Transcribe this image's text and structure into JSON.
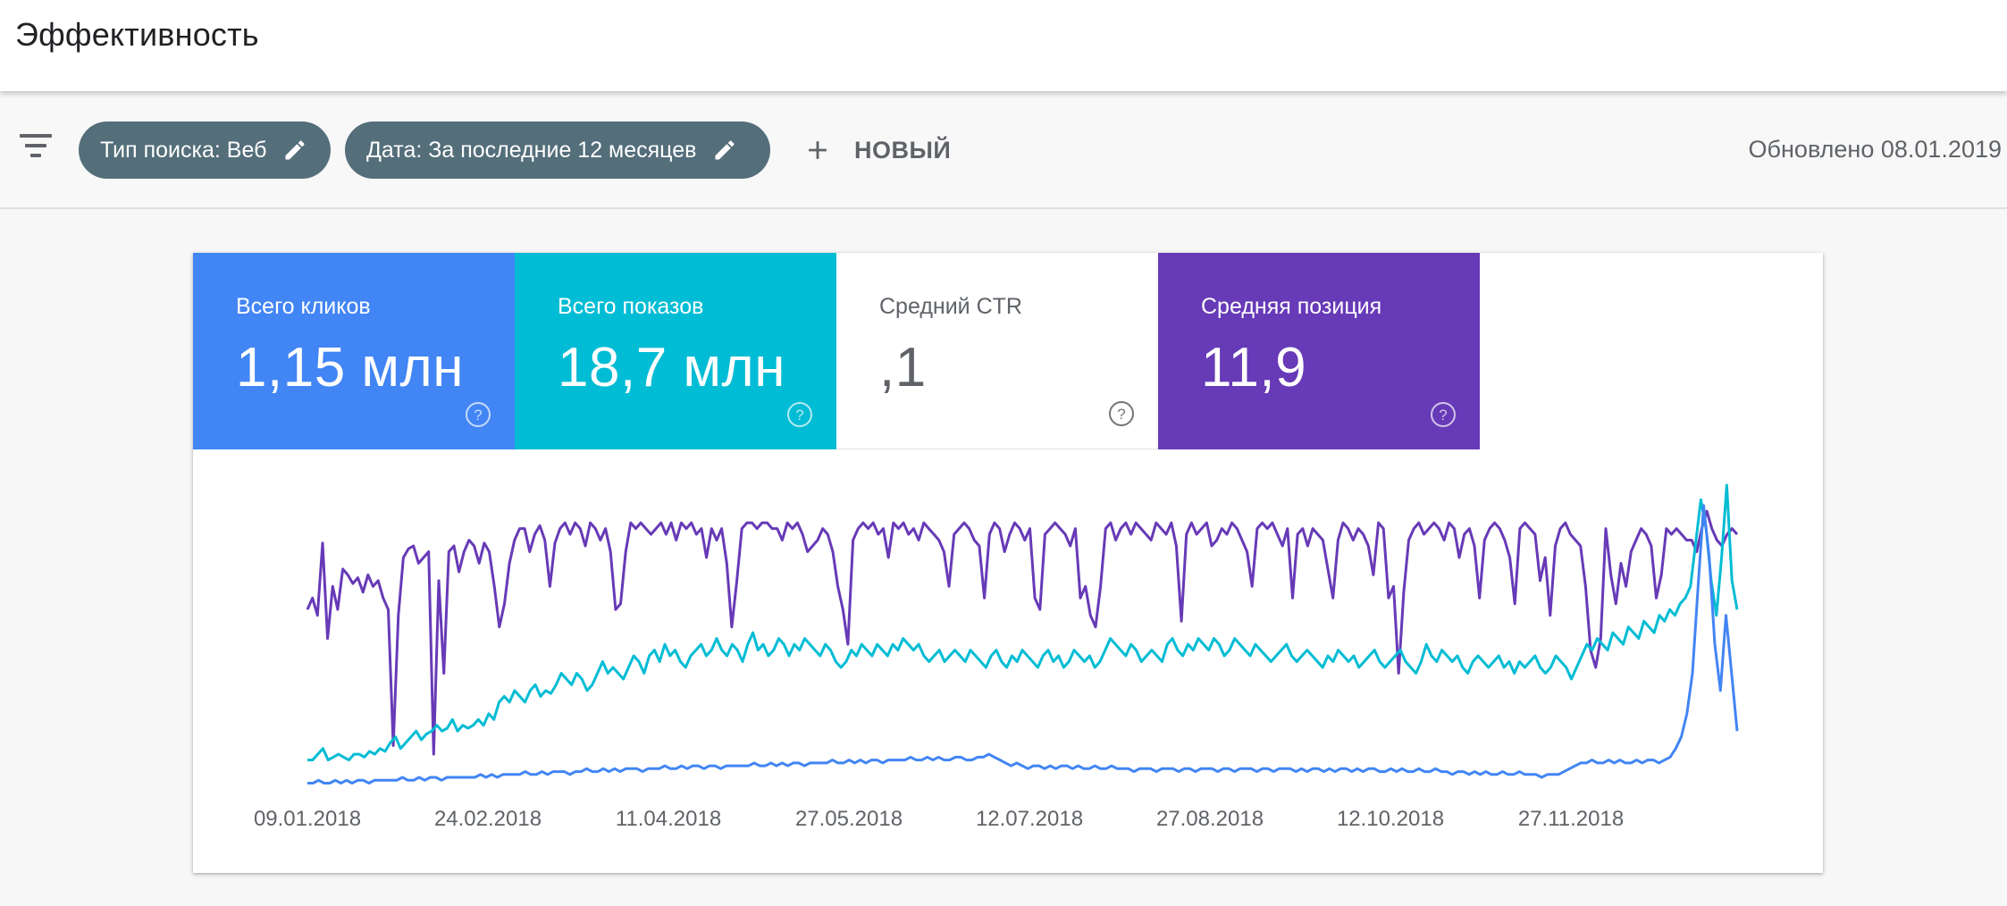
{
  "page": {
    "title": "Эффективность"
  },
  "filters": {
    "filter_icon": "filter-list-icon",
    "chips": [
      {
        "label": "Тип поиска: Веб",
        "icon": "pencil-icon"
      },
      {
        "label": "Дата: За последние 12 месяцев",
        "icon": "pencil-icon"
      }
    ],
    "new_label": "НОВЫЙ",
    "updated": "Обновлено 08.01.2019"
  },
  "metrics": {
    "clicks": {
      "label": "Всего кликов",
      "value": "1,15 млн",
      "color": "#4285f4"
    },
    "impressions": {
      "label": "Всего показов",
      "value": "18,7 млн",
      "color": "#00bcd4"
    },
    "ctr": {
      "label": "Средний CTR",
      "value": ",1"
    },
    "position": {
      "label": "Средняя позиция",
      "value": "11,9",
      "color": "#673ab7"
    }
  },
  "chart_data": {
    "type": "line",
    "title": "",
    "xlabel": "",
    "ylabel": "",
    "x_ticks": [
      "09.01.2018",
      "24.02.2018",
      "11.04.2018",
      "27.05.2018",
      "12.07.2018",
      "27.08.2018",
      "12.10.2018",
      "27.11.2018"
    ],
    "x_range": [
      "09.01.2018",
      "08.01.2019"
    ],
    "y_axis_visible": false,
    "grid": false,
    "series": [
      {
        "color": "#673ab7",
        "values": [
          0.62,
          0.66,
          0.6,
          0.85,
          0.52,
          0.7,
          0.62,
          0.76,
          0.74,
          0.71,
          0.73,
          0.68,
          0.74,
          0.7,
          0.72,
          0.66,
          0.62,
          0.15,
          0.6,
          0.8,
          0.83,
          0.84,
          0.78,
          0.8,
          0.82,
          0.12,
          0.72,
          0.4,
          0.82,
          0.84,
          0.75,
          0.82,
          0.86,
          0.84,
          0.78,
          0.85,
          0.82,
          0.7,
          0.56,
          0.64,
          0.78,
          0.86,
          0.9,
          0.9,
          0.82,
          0.88,
          0.91,
          0.86,
          0.7,
          0.85,
          0.9,
          0.92,
          0.88,
          0.92,
          0.9,
          0.84,
          0.92,
          0.9,
          0.86,
          0.9,
          0.82,
          0.62,
          0.64,
          0.82,
          0.92,
          0.9,
          0.92,
          0.9,
          0.88,
          0.9,
          0.92,
          0.88,
          0.92,
          0.86,
          0.92,
          0.9,
          0.92,
          0.88,
          0.9,
          0.8,
          0.9,
          0.86,
          0.9,
          0.78,
          0.56,
          0.72,
          0.9,
          0.92,
          0.92,
          0.9,
          0.92,
          0.92,
          0.9,
          0.9,
          0.86,
          0.92,
          0.9,
          0.92,
          0.88,
          0.82,
          0.84,
          0.86,
          0.9,
          0.88,
          0.82,
          0.7,
          0.62,
          0.5,
          0.86,
          0.9,
          0.92,
          0.9,
          0.92,
          0.88,
          0.9,
          0.8,
          0.92,
          0.9,
          0.92,
          0.88,
          0.9,
          0.86,
          0.92,
          0.9,
          0.88,
          0.86,
          0.82,
          0.7,
          0.88,
          0.9,
          0.92,
          0.9,
          0.86,
          0.84,
          0.66,
          0.88,
          0.92,
          0.9,
          0.82,
          0.88,
          0.92,
          0.9,
          0.86,
          0.9,
          0.66,
          0.62,
          0.88,
          0.9,
          0.92,
          0.9,
          0.88,
          0.84,
          0.9,
          0.66,
          0.7,
          0.6,
          0.56,
          0.7,
          0.9,
          0.92,
          0.86,
          0.9,
          0.92,
          0.88,
          0.92,
          0.9,
          0.88,
          0.86,
          0.92,
          0.9,
          0.88,
          0.92,
          0.84,
          0.58,
          0.88,
          0.92,
          0.88,
          0.9,
          0.92,
          0.84,
          0.86,
          0.9,
          0.88,
          0.92,
          0.9,
          0.86,
          0.82,
          0.7,
          0.9,
          0.92,
          0.9,
          0.92,
          0.88,
          0.84,
          0.9,
          0.66,
          0.88,
          0.9,
          0.84,
          0.9,
          0.88,
          0.86,
          0.76,
          0.66,
          0.86,
          0.92,
          0.9,
          0.86,
          0.9,
          0.88,
          0.84,
          0.74,
          0.92,
          0.9,
          0.66,
          0.7,
          0.4,
          0.68,
          0.86,
          0.9,
          0.92,
          0.88,
          0.9,
          0.92,
          0.9,
          0.86,
          0.92,
          0.9,
          0.8,
          0.88,
          0.9,
          0.84,
          0.66,
          0.86,
          0.9,
          0.92,
          0.9,
          0.86,
          0.8,
          0.64,
          0.9,
          0.92,
          0.9,
          0.88,
          0.72,
          0.8,
          0.6,
          0.84,
          0.9,
          0.92,
          0.88,
          0.86,
          0.84,
          0.7,
          0.48,
          0.42,
          0.52,
          0.9,
          0.74,
          0.64,
          0.78,
          0.7,
          0.82,
          0.86,
          0.9,
          0.88,
          0.84,
          0.66,
          0.74,
          0.9,
          0.88,
          0.9,
          0.88,
          0.86,
          0.86,
          0.82,
          0.9,
          0.96,
          0.9,
          0.86,
          0.84,
          0.88,
          0.9,
          0.88
        ]
      },
      {
        "color": "#00bcd4",
        "values": [
          0.1,
          0.1,
          0.12,
          0.14,
          0.1,
          0.11,
          0.12,
          0.11,
          0.1,
          0.12,
          0.12,
          0.11,
          0.13,
          0.12,
          0.14,
          0.13,
          0.16,
          0.18,
          0.14,
          0.16,
          0.18,
          0.2,
          0.17,
          0.19,
          0.2,
          0.22,
          0.2,
          0.21,
          0.24,
          0.2,
          0.22,
          0.21,
          0.22,
          0.24,
          0.22,
          0.26,
          0.24,
          0.3,
          0.32,
          0.3,
          0.34,
          0.32,
          0.3,
          0.34,
          0.36,
          0.32,
          0.34,
          0.33,
          0.36,
          0.4,
          0.38,
          0.36,
          0.4,
          0.38,
          0.34,
          0.36,
          0.4,
          0.44,
          0.4,
          0.42,
          0.4,
          0.38,
          0.42,
          0.46,
          0.44,
          0.4,
          0.46,
          0.48,
          0.44,
          0.5,
          0.46,
          0.48,
          0.44,
          0.42,
          0.46,
          0.48,
          0.5,
          0.46,
          0.48,
          0.52,
          0.48,
          0.46,
          0.5,
          0.48,
          0.44,
          0.5,
          0.54,
          0.48,
          0.5,
          0.46,
          0.48,
          0.52,
          0.5,
          0.46,
          0.5,
          0.48,
          0.52,
          0.5,
          0.48,
          0.46,
          0.5,
          0.48,
          0.44,
          0.42,
          0.44,
          0.48,
          0.46,
          0.5,
          0.48,
          0.46,
          0.5,
          0.48,
          0.46,
          0.5,
          0.48,
          0.52,
          0.5,
          0.48,
          0.5,
          0.46,
          0.44,
          0.46,
          0.48,
          0.44,
          0.46,
          0.48,
          0.46,
          0.44,
          0.48,
          0.46,
          0.44,
          0.42,
          0.46,
          0.48,
          0.44,
          0.42,
          0.46,
          0.44,
          0.48,
          0.46,
          0.44,
          0.42,
          0.46,
          0.48,
          0.44,
          0.46,
          0.42,
          0.44,
          0.48,
          0.46,
          0.44,
          0.46,
          0.42,
          0.44,
          0.48,
          0.52,
          0.5,
          0.48,
          0.46,
          0.5,
          0.48,
          0.44,
          0.46,
          0.48,
          0.46,
          0.44,
          0.5,
          0.52,
          0.48,
          0.46,
          0.5,
          0.48,
          0.52,
          0.5,
          0.48,
          0.52,
          0.5,
          0.46,
          0.48,
          0.52,
          0.5,
          0.48,
          0.46,
          0.5,
          0.48,
          0.46,
          0.44,
          0.46,
          0.48,
          0.5,
          0.46,
          0.44,
          0.46,
          0.48,
          0.46,
          0.44,
          0.42,
          0.46,
          0.44,
          0.48,
          0.46,
          0.44,
          0.46,
          0.42,
          0.44,
          0.46,
          0.48,
          0.44,
          0.42,
          0.44,
          0.46,
          0.48,
          0.44,
          0.42,
          0.4,
          0.44,
          0.5,
          0.46,
          0.44,
          0.48,
          0.46,
          0.44,
          0.46,
          0.42,
          0.4,
          0.44,
          0.46,
          0.44,
          0.42,
          0.44,
          0.46,
          0.42,
          0.44,
          0.4,
          0.44,
          0.42,
          0.44,
          0.46,
          0.42,
          0.4,
          0.42,
          0.46,
          0.44,
          0.42,
          0.38,
          0.42,
          0.46,
          0.5,
          0.48,
          0.52,
          0.5,
          0.48,
          0.54,
          0.52,
          0.5,
          0.56,
          0.54,
          0.52,
          0.58,
          0.56,
          0.54,
          0.6,
          0.58,
          0.62,
          0.6,
          0.64,
          0.66,
          0.7,
          0.85,
          1.0,
          0.9,
          0.72,
          0.6,
          0.8,
          1.05,
          0.72,
          0.62
        ]
      },
      {
        "color": "#4285f4",
        "values": [
          0.02,
          0.02,
          0.03,
          0.02,
          0.02,
          0.03,
          0.02,
          0.03,
          0.02,
          0.03,
          0.03,
          0.02,
          0.03,
          0.03,
          0.03,
          0.03,
          0.03,
          0.04,
          0.03,
          0.03,
          0.04,
          0.03,
          0.04,
          0.04,
          0.03,
          0.04,
          0.04,
          0.04,
          0.04,
          0.04,
          0.04,
          0.05,
          0.04,
          0.05,
          0.04,
          0.05,
          0.05,
          0.05,
          0.05,
          0.06,
          0.05,
          0.05,
          0.06,
          0.05,
          0.06,
          0.06,
          0.06,
          0.05,
          0.06,
          0.06,
          0.07,
          0.06,
          0.06,
          0.07,
          0.06,
          0.07,
          0.06,
          0.07,
          0.07,
          0.07,
          0.06,
          0.07,
          0.07,
          0.07,
          0.08,
          0.07,
          0.07,
          0.08,
          0.07,
          0.08,
          0.08,
          0.07,
          0.08,
          0.08,
          0.07,
          0.08,
          0.08,
          0.08,
          0.08,
          0.08,
          0.09,
          0.08,
          0.08,
          0.09,
          0.08,
          0.09,
          0.08,
          0.09,
          0.09,
          0.08,
          0.09,
          0.09,
          0.09,
          0.09,
          0.1,
          0.09,
          0.09,
          0.1,
          0.09,
          0.1,
          0.09,
          0.1,
          0.1,
          0.09,
          0.1,
          0.1,
          0.1,
          0.1,
          0.11,
          0.1,
          0.1,
          0.11,
          0.1,
          0.11,
          0.1,
          0.1,
          0.11,
          0.11,
          0.1,
          0.1,
          0.11,
          0.11,
          0.12,
          0.11,
          0.1,
          0.09,
          0.08,
          0.09,
          0.08,
          0.07,
          0.08,
          0.08,
          0.07,
          0.08,
          0.07,
          0.08,
          0.08,
          0.07,
          0.08,
          0.07,
          0.07,
          0.08,
          0.07,
          0.07,
          0.08,
          0.07,
          0.07,
          0.07,
          0.06,
          0.07,
          0.07,
          0.07,
          0.06,
          0.07,
          0.07,
          0.07,
          0.06,
          0.07,
          0.07,
          0.06,
          0.07,
          0.07,
          0.07,
          0.06,
          0.07,
          0.07,
          0.06,
          0.07,
          0.07,
          0.07,
          0.06,
          0.07,
          0.07,
          0.06,
          0.07,
          0.07,
          0.07,
          0.06,
          0.07,
          0.06,
          0.07,
          0.07,
          0.06,
          0.07,
          0.06,
          0.07,
          0.07,
          0.06,
          0.07,
          0.06,
          0.07,
          0.07,
          0.06,
          0.06,
          0.07,
          0.06,
          0.07,
          0.06,
          0.06,
          0.07,
          0.06,
          0.06,
          0.07,
          0.06,
          0.06,
          0.05,
          0.06,
          0.06,
          0.05,
          0.06,
          0.05,
          0.06,
          0.05,
          0.05,
          0.06,
          0.05,
          0.05,
          0.06,
          0.05,
          0.05,
          0.05,
          0.04,
          0.05,
          0.05,
          0.05,
          0.06,
          0.07,
          0.08,
          0.09,
          0.09,
          0.1,
          0.09,
          0.09,
          0.1,
          0.09,
          0.1,
          0.09,
          0.09,
          0.1,
          0.09,
          0.1,
          0.1,
          0.09,
          0.1,
          0.11,
          0.14,
          0.18,
          0.26,
          0.4,
          0.7,
          0.98,
          0.8,
          0.5,
          0.34,
          0.6,
          0.4,
          0.2
        ]
      }
    ]
  }
}
